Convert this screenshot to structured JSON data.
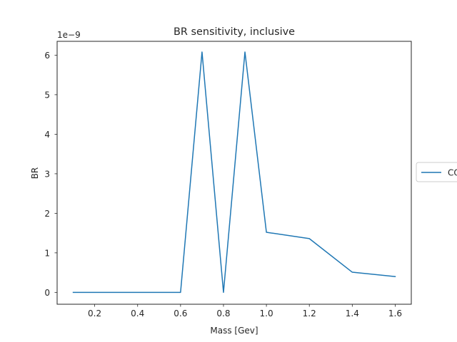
{
  "chart_data": {
    "type": "line",
    "title": "BR sensitivity, inclusive",
    "xlabel": "Mass [Gev]",
    "ylabel": "BR",
    "y_offset_label": "1e−9",
    "y_scale": 1e-09,
    "xlim": [
      0.025,
      1.675
    ],
    "ylim": [
      -0.3,
      6.35
    ],
    "xticks": [
      0.2,
      0.4,
      0.6,
      0.8,
      1.0,
      1.2,
      1.4,
      1.6
    ],
    "xtick_labels": [
      "0.2",
      "0.4",
      "0.6",
      "0.8",
      "1.0",
      "1.2",
      "1.4",
      "1.6"
    ],
    "yticks": [
      0,
      1,
      2,
      3,
      4,
      5,
      6
    ],
    "ytick_labels": [
      "0",
      "1",
      "2",
      "3",
      "4",
      "5",
      "6"
    ],
    "grid": false,
    "legend_position": "right, outside plot",
    "series": [
      {
        "name": "CO",
        "color": "#1f77b4",
        "x": [
          0.1,
          0.2,
          0.3,
          0.4,
          0.5,
          0.6,
          0.7,
          0.8,
          0.9,
          1.0,
          1.2,
          1.4,
          1.6
        ],
        "y": [
          0,
          0,
          0,
          0,
          0,
          0,
          6.08,
          0,
          6.08,
          1.52,
          1.36,
          0.51,
          0.4
        ]
      }
    ]
  }
}
